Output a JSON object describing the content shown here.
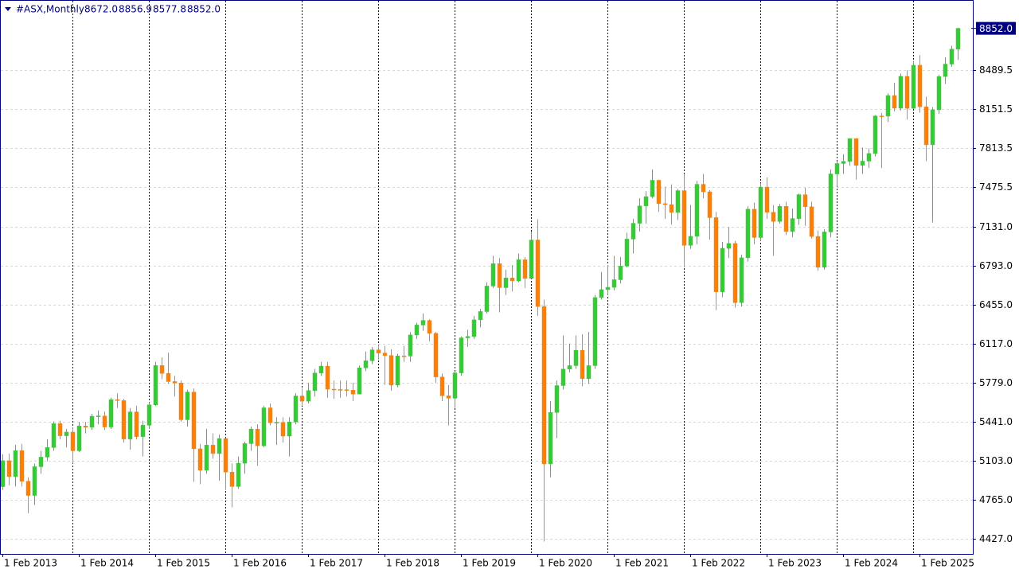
{
  "chart_data": {
    "type": "candlestick",
    "symbol": "#ASX,Monthly",
    "header_labels": [
      "8672.0",
      "8856.9",
      "8577.8",
      "8852.0"
    ],
    "current_price": {
      "value": 8852,
      "label": "8852.0"
    },
    "x": [
      "2013-02-01",
      "2013-03-01",
      "2013-04-01",
      "2013-05-01",
      "2013-06-01",
      "2013-07-01",
      "2013-08-01",
      "2013-09-01",
      "2013-10-01",
      "2013-11-01",
      "2013-12-01",
      "2014-01-01",
      "2014-02-01",
      "2014-03-01",
      "2014-04-01",
      "2014-05-01",
      "2014-06-01",
      "2014-07-01",
      "2014-08-01",
      "2014-09-01",
      "2014-10-01",
      "2014-11-01",
      "2014-12-01",
      "2015-01-01",
      "2015-02-01",
      "2015-03-01",
      "2015-04-01",
      "2015-05-01",
      "2015-06-01",
      "2015-07-01",
      "2015-08-01",
      "2015-09-01",
      "2015-10-01",
      "2015-11-01",
      "2015-12-01",
      "2016-01-01",
      "2016-02-01",
      "2016-03-01",
      "2016-04-01",
      "2016-05-01",
      "2016-06-01",
      "2016-07-01",
      "2016-08-01",
      "2016-09-01",
      "2016-10-01",
      "2016-11-01",
      "2016-12-01",
      "2017-01-01",
      "2017-02-01",
      "2017-03-01",
      "2017-04-01",
      "2017-05-01",
      "2017-06-01",
      "2017-07-01",
      "2017-08-01",
      "2017-09-01",
      "2017-10-01",
      "2017-11-01",
      "2017-12-01",
      "2018-01-01",
      "2018-02-01",
      "2018-03-01",
      "2018-04-01",
      "2018-05-01",
      "2018-06-01",
      "2018-07-01",
      "2018-08-01",
      "2018-09-01",
      "2018-10-01",
      "2018-11-01",
      "2018-12-01",
      "2019-01-01",
      "2019-02-01",
      "2019-03-01",
      "2019-04-01",
      "2019-05-01",
      "2019-06-01",
      "2019-07-01",
      "2019-08-01",
      "2019-09-01",
      "2019-10-01",
      "2019-11-01",
      "2019-12-01",
      "2020-01-01",
      "2020-02-01",
      "2020-03-01",
      "2020-04-01",
      "2020-05-01",
      "2020-06-01",
      "2020-07-01",
      "2020-08-01",
      "2020-09-01",
      "2020-10-01",
      "2020-11-01",
      "2020-12-01",
      "2021-01-01",
      "2021-02-01",
      "2021-03-01",
      "2021-04-01",
      "2021-05-01",
      "2021-06-01",
      "2021-07-01",
      "2021-08-01",
      "2021-09-01",
      "2021-10-01",
      "2021-11-01",
      "2021-12-01",
      "2022-01-01",
      "2022-02-01",
      "2022-03-01",
      "2022-04-01",
      "2022-05-01",
      "2022-06-01",
      "2022-07-01",
      "2022-08-01",
      "2022-09-01",
      "2022-10-01",
      "2022-11-01",
      "2022-12-01",
      "2023-01-01",
      "2023-02-01",
      "2023-03-01",
      "2023-04-01",
      "2023-05-01",
      "2023-06-01",
      "2023-07-01",
      "2023-08-01",
      "2023-09-01",
      "2023-10-01",
      "2023-11-01",
      "2023-12-01",
      "2024-01-01",
      "2024-02-01",
      "2024-03-01",
      "2024-04-01",
      "2024-05-01",
      "2024-06-01",
      "2024-07-01",
      "2024-08-01",
      "2024-09-01",
      "2024-10-01",
      "2024-11-01",
      "2024-12-01",
      "2025-01-01",
      "2025-02-01",
      "2025-03-01",
      "2025-04-01",
      "2025-05-01",
      "2025-06-01",
      "2025-07-01",
      "2025-08-01"
    ],
    "open": [
      4879,
      5104,
      4966,
      5191,
      4926,
      4803,
      5052,
      5135,
      5218,
      5425,
      5320,
      5352,
      5190,
      5405,
      5394,
      5489,
      5492,
      5396,
      5633,
      5625,
      5292,
      5527,
      5313,
      5411,
      5588,
      5929,
      5861,
      5790,
      5777,
      5459,
      5699,
      5207,
      5021,
      5239,
      5166,
      5296,
      5005,
      4880,
      5082,
      5252,
      5378,
      5233,
      5562,
      5433,
      5436,
      5317,
      5440,
      5665,
      5620,
      5712,
      5864,
      5924,
      5724,
      5721,
      5720,
      5715,
      5682,
      5909,
      5970,
      6065,
      6037,
      6016,
      5759,
      6012,
      6011,
      6194,
      6280,
      6320,
      6208,
      5830,
      5667,
      5646,
      5865,
      6169,
      6181,
      6325,
      6397,
      6618,
      6812,
      6604,
      6688,
      6663,
      6846,
      6684,
      7017,
      6441,
      5076,
      5522,
      5755,
      5898,
      5928,
      6061,
      5815,
      5928,
      6518,
      6587,
      6607,
      6673,
      6791,
      7025,
      7162,
      7313,
      7393,
      7535,
      7332,
      7324,
      7256,
      7445,
      6971,
      7049,
      7500,
      7435,
      7211,
      6568,
      6945,
      6987,
      6474,
      6863,
      7284,
      7039,
      7476,
      7258,
      7178,
      7309,
      7091,
      7203,
      7410,
      7305,
      7048,
      6781,
      7087,
      7590,
      7680,
      7699,
      7896,
      7664,
      7701,
      7767,
      8092,
      8091,
      8269,
      8160,
      8436,
      8159,
      8532,
      8172,
      7843,
      8146,
      8434,
      8542,
      8672
    ],
    "high": [
      5160,
      5165,
      5240,
      5250,
      4960,
      5080,
      5190,
      5290,
      5445,
      5450,
      5380,
      5390,
      5440,
      5440,
      5510,
      5540,
      5530,
      5650,
      5690,
      5640,
      5560,
      5580,
      5450,
      5610,
      5960,
      6000,
      6040,
      5840,
      5800,
      5720,
      5730,
      5250,
      5380,
      5340,
      5330,
      5300,
      5080,
      5140,
      5270,
      5400,
      5420,
      5580,
      5600,
      5480,
      5480,
      5480,
      5690,
      5730,
      5780,
      5900,
      5960,
      5960,
      5800,
      5800,
      5800,
      5780,
      5930,
      6050,
      6090,
      6110,
      6100,
      6070,
      6030,
      6100,
      6220,
      6300,
      6380,
      6330,
      6220,
      5860,
      5760,
      5880,
      6180,
      6240,
      6360,
      6420,
      6650,
      6880,
      6860,
      6760,
      6800,
      6900,
      6870,
      7090,
      7197,
      6500,
      5620,
      5800,
      6190,
      6120,
      6190,
      6200,
      6220,
      6540,
      6740,
      6800,
      6880,
      6870,
      7080,
      7200,
      7380,
      7440,
      7630,
      7540,
      7480,
      7500,
      7460,
      7590,
      7320,
      7530,
      7590,
      7450,
      7260,
      7000,
      7130,
      7010,
      6890,
      7310,
      7340,
      7510,
      7560,
      7320,
      7330,
      7350,
      7290,
      7420,
      7470,
      7350,
      7100,
      7110,
      7630,
      7700,
      7760,
      7900,
      7900,
      7820,
      7810,
      8100,
      8120,
      8290,
      8380,
      8460,
      8490,
      8570,
      8620,
      8260,
      8170,
      8450,
      8600,
      8700,
      8856.9
    ],
    "low": [
      4850,
      4890,
      4880,
      4880,
      4650,
      4720,
      4990,
      5100,
      5190,
      5290,
      5220,
      5080,
      5180,
      5340,
      5370,
      5420,
      5370,
      5380,
      5560,
      5260,
      5200,
      5290,
      5140,
      5380,
      5580,
      5810,
      5770,
      5660,
      5440,
      5400,
      4920,
      4900,
      4990,
      5120,
      4930,
      4850,
      4700,
      4860,
      4990,
      5190,
      5060,
      5220,
      5410,
      5240,
      5260,
      5140,
      5420,
      5580,
      5600,
      5660,
      5840,
      5650,
      5640,
      5650,
      5660,
      5620,
      5680,
      5880,
      5940,
      5980,
      5760,
      5710,
      5740,
      5960,
      5960,
      6160,
      6230,
      6140,
      5780,
      5620,
      5410,
      5560,
      5840,
      6090,
      6160,
      6260,
      6380,
      6600,
      6390,
      6540,
      6570,
      6650,
      6600,
      6680,
      6360,
      4403,
      4960,
      5300,
      5720,
      5870,
      5900,
      5750,
      5770,
      5900,
      6500,
      6540,
      6580,
      6640,
      6780,
      6900,
      7090,
      7160,
      7380,
      7260,
      7200,
      7150,
      7190,
      6780,
      6940,
      6980,
      7380,
      7020,
      6410,
      6520,
      6860,
      6430,
      6440,
      6830,
      6980,
      7010,
      7200,
      6880,
      7160,
      7060,
      7040,
      7150,
      7140,
      7030,
      6750,
      6760,
      7040,
      7480,
      7590,
      7660,
      7540,
      7590,
      7640,
      7740,
      7640,
      8040,
      8130,
      8140,
      8060,
      8150,
      8120,
      7700,
      7169,
      8110,
      8370,
      8520,
      8577.8
    ],
    "close": [
      5104,
      4966,
      5191,
      4926,
      4803,
      5052,
      5135,
      5218,
      5425,
      5320,
      5352,
      5190,
      5405,
      5394,
      5489,
      5492,
      5396,
      5633,
      5625,
      5292,
      5527,
      5313,
      5411,
      5588,
      5929,
      5861,
      5790,
      5777,
      5459,
      5699,
      5207,
      5021,
      5239,
      5166,
      5296,
      5005,
      4880,
      5082,
      5252,
      5378,
      5233,
      5562,
      5433,
      5436,
      5317,
      5440,
      5665,
      5620,
      5712,
      5864,
      5924,
      5724,
      5721,
      5720,
      5715,
      5682,
      5909,
      5970,
      6065,
      6037,
      6016,
      5759,
      6012,
      6011,
      6194,
      6280,
      6320,
      6208,
      5830,
      5667,
      5646,
      5865,
      6169,
      6181,
      6325,
      6397,
      6618,
      6812,
      6604,
      6688,
      6663,
      6846,
      6684,
      7017,
      6441,
      5076,
      5522,
      5755,
      5898,
      5928,
      6061,
      5815,
      5928,
      6518,
      6587,
      6607,
      6673,
      6791,
      7025,
      7162,
      7313,
      7393,
      7535,
      7332,
      7324,
      7256,
      7445,
      6971,
      7049,
      7500,
      7435,
      7211,
      6568,
      6945,
      6987,
      6474,
      6863,
      7284,
      7039,
      7476,
      7258,
      7178,
      7309,
      7091,
      7203,
      7410,
      7305,
      7048,
      6781,
      7087,
      7590,
      7680,
      7699,
      7896,
      7664,
      7701,
      7767,
      8092,
      8091,
      8269,
      8160,
      8436,
      8159,
      8532,
      8172,
      7843,
      8146,
      8434,
      8542,
      8672,
      8852
    ],
    "up_color": "#32cd32",
    "down_color": "#ff8000",
    "ylim": [
      4296,
      9077
    ],
    "yticks": [
      {
        "value": 4427,
        "label": "4427.0"
      },
      {
        "value": 4765,
        "label": "4765.0"
      },
      {
        "value": 5103,
        "label": "5103.0"
      },
      {
        "value": 5441,
        "label": "5441.0"
      },
      {
        "value": 5779,
        "label": "5779.0"
      },
      {
        "value": 6117,
        "label": "6117.0"
      },
      {
        "value": 6455,
        "label": "6455.0"
      },
      {
        "value": 6793,
        "label": "6793.0"
      },
      {
        "value": 7131,
        "label": "7131.0"
      },
      7475.5,
      7813.5,
      8151.5,
      8489.5
    ],
    "xticks": [
      {
        "value": "2013-02-01",
        "label": "1 Feb 2013"
      },
      {
        "value": "2014-02-01",
        "label": "1 Feb 2014"
      },
      {
        "value": "2015-02-01",
        "label": "1 Feb 2015"
      },
      {
        "value": "2016-02-01",
        "label": "1 Feb 2016"
      },
      {
        "value": "2017-02-01",
        "label": "1 Feb 2017"
      },
      {
        "value": "2018-02-01",
        "label": "1 Feb 2018"
      },
      {
        "value": "2019-02-01",
        "label": "1 Feb 2019"
      },
      {
        "value": "2020-02-01",
        "label": "1 Feb 2020"
      },
      {
        "value": "2021-02-01",
        "label": "1 Feb 2021"
      },
      {
        "value": "2022-02-01",
        "label": "1 Feb 2022"
      },
      {
        "value": "2023-02-01",
        "label": "1 Feb 2023"
      },
      {
        "value": "2024-02-01",
        "label": "1 Feb 2024"
      },
      {
        "value": "2025-02-01",
        "label": "1 Feb 2025"
      }
    ],
    "grid": true,
    "period_separators": true
  }
}
